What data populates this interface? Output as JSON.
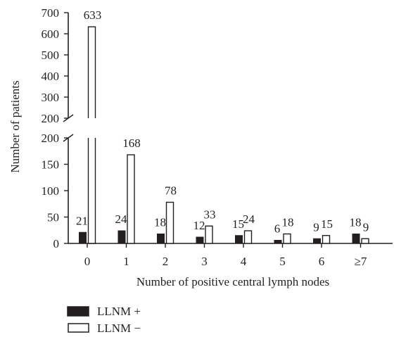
{
  "chart_data": {
    "type": "bar",
    "categories": [
      "0",
      "1",
      "2",
      "3",
      "4",
      "5",
      "6",
      "≥7"
    ],
    "series": [
      {
        "name": "LLNM +",
        "color": "#231f20",
        "fill": "solid",
        "values": [
          21,
          24,
          18,
          12,
          15,
          6,
          9,
          18
        ]
      },
      {
        "name": "LLNM −",
        "color": "#ffffff",
        "fill": "outline",
        "values": [
          633,
          168,
          78,
          33,
          24,
          18,
          15,
          9
        ]
      }
    ],
    "xlabel": "Number of positive central lymph nodes",
    "ylabel": "Number of patients",
    "y_axis_broken": true,
    "lower_segment": {
      "ylim": [
        0,
        200
      ],
      "ticks": [
        "0",
        "50",
        "100",
        "150",
        "200"
      ]
    },
    "upper_segment": {
      "ylim": [
        200,
        700
      ],
      "ticks": [
        "200",
        "300",
        "400",
        "500",
        "600",
        "700"
      ]
    },
    "grid": false,
    "legend_placement": "bottom-left"
  }
}
